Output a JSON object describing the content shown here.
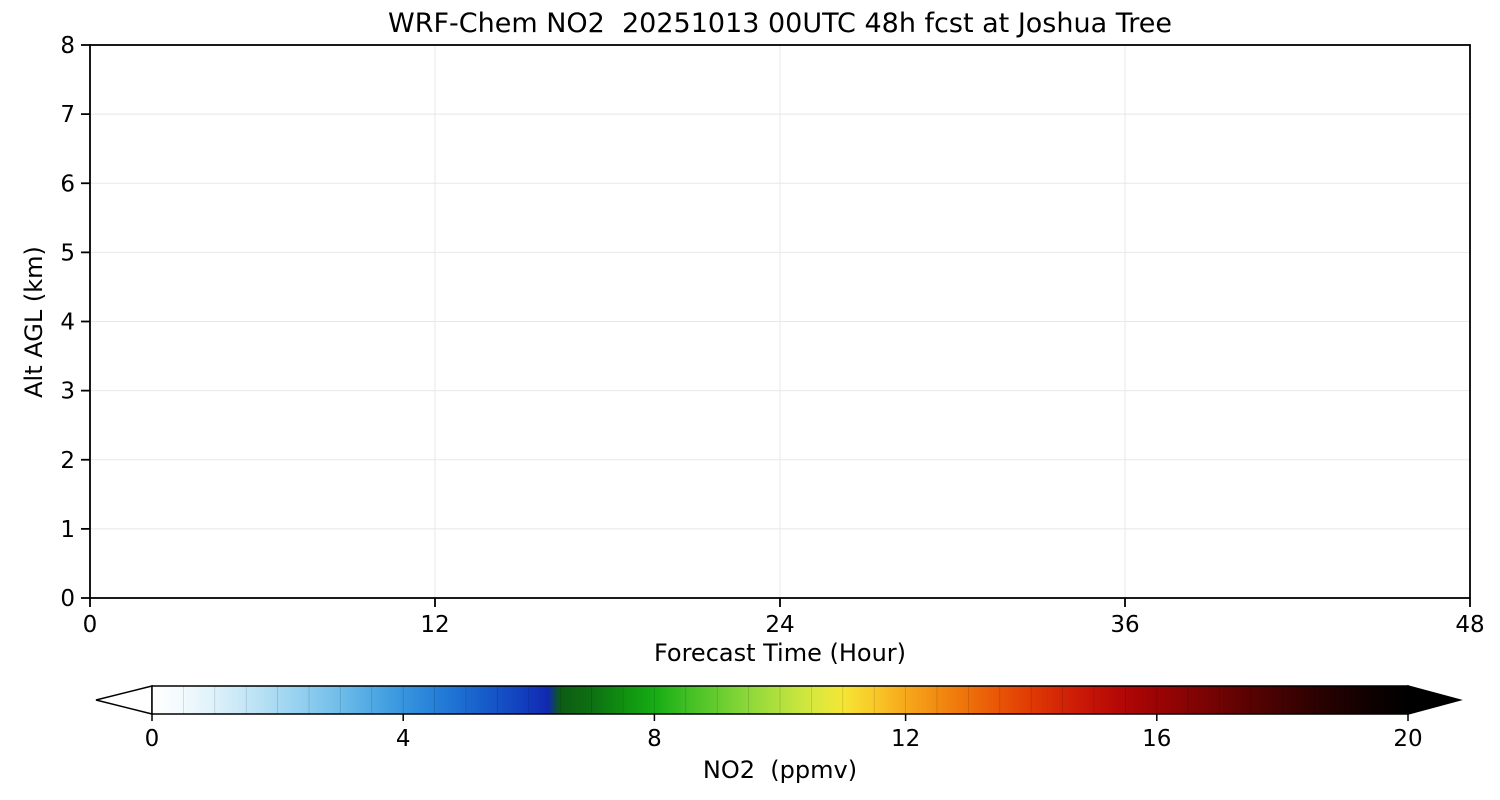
{
  "chart_data": {
    "type": "heatmap",
    "title": "WRF-Chem NO2  20251013 00UTC 48h fcst at Joshua Tree",
    "xlabel": "Forecast Time (Hour)",
    "ylabel": "Alt AGL (km)",
    "xlim": [
      0,
      48
    ],
    "ylim": [
      0,
      8
    ],
    "x_ticks": [
      0,
      12,
      24,
      36,
      48
    ],
    "y_ticks": [
      0,
      1,
      2,
      3,
      4,
      5,
      6,
      7,
      8
    ],
    "grid": true,
    "field_note": "plot area is blank/white: NO2 values approximately 0 ppmv everywhere in the cross-section",
    "series": [],
    "colorbar": {
      "label": "NO2  (ppmv)",
      "ticks": [
        0,
        4,
        8,
        12,
        16,
        20
      ],
      "range": [
        0,
        20
      ],
      "extend": "both",
      "levels_step": 0.5,
      "stops": [
        {
          "pos": 0.0,
          "color": "#ffffff"
        },
        {
          "pos": 0.025,
          "color": "#f2fafd"
        },
        {
          "pos": 0.05,
          "color": "#ddf1fa"
        },
        {
          "pos": 0.075,
          "color": "#c4e6f6"
        },
        {
          "pos": 0.1,
          "color": "#a8daf2"
        },
        {
          "pos": 0.125,
          "color": "#8cccee"
        },
        {
          "pos": 0.15,
          "color": "#6ebce9"
        },
        {
          "pos": 0.175,
          "color": "#50a9e4"
        },
        {
          "pos": 0.2,
          "color": "#3795de"
        },
        {
          "pos": 0.225,
          "color": "#2680d8"
        },
        {
          "pos": 0.25,
          "color": "#1b6ad0"
        },
        {
          "pos": 0.275,
          "color": "#1552c6"
        },
        {
          "pos": 0.3,
          "color": "#123abc"
        },
        {
          "pos": 0.315,
          "color": "#1128b0"
        },
        {
          "pos": 0.325,
          "color": "#0d5c14"
        },
        {
          "pos": 0.35,
          "color": "#0e6f12"
        },
        {
          "pos": 0.375,
          "color": "#109010"
        },
        {
          "pos": 0.4,
          "color": "#16ac14"
        },
        {
          "pos": 0.425,
          "color": "#3fbe24"
        },
        {
          "pos": 0.45,
          "color": "#66cc2e"
        },
        {
          "pos": 0.475,
          "color": "#8ed83a"
        },
        {
          "pos": 0.5,
          "color": "#b2e03e"
        },
        {
          "pos": 0.525,
          "color": "#d5e83e"
        },
        {
          "pos": 0.55,
          "color": "#f5e636"
        },
        {
          "pos": 0.575,
          "color": "#f9c828"
        },
        {
          "pos": 0.6,
          "color": "#f7a81c"
        },
        {
          "pos": 0.625,
          "color": "#f28c12"
        },
        {
          "pos": 0.65,
          "color": "#ee700a"
        },
        {
          "pos": 0.675,
          "color": "#e95406"
        },
        {
          "pos": 0.7,
          "color": "#e03a04"
        },
        {
          "pos": 0.725,
          "color": "#d22406"
        },
        {
          "pos": 0.75,
          "color": "#c41206"
        },
        {
          "pos": 0.775,
          "color": "#b00606"
        },
        {
          "pos": 0.8,
          "color": "#9c0404"
        },
        {
          "pos": 0.825,
          "color": "#860404"
        },
        {
          "pos": 0.85,
          "color": "#700303"
        },
        {
          "pos": 0.875,
          "color": "#580202"
        },
        {
          "pos": 0.9,
          "color": "#420202"
        },
        {
          "pos": 0.925,
          "color": "#2e0101"
        },
        {
          "pos": 0.95,
          "color": "#1c0101"
        },
        {
          "pos": 0.975,
          "color": "#0c0000"
        },
        {
          "pos": 1.0,
          "color": "#000000"
        }
      ]
    },
    "colors": {
      "axis": "#000000",
      "grid": "#e8e8e8",
      "plot_bg": "#ffffff"
    }
  }
}
